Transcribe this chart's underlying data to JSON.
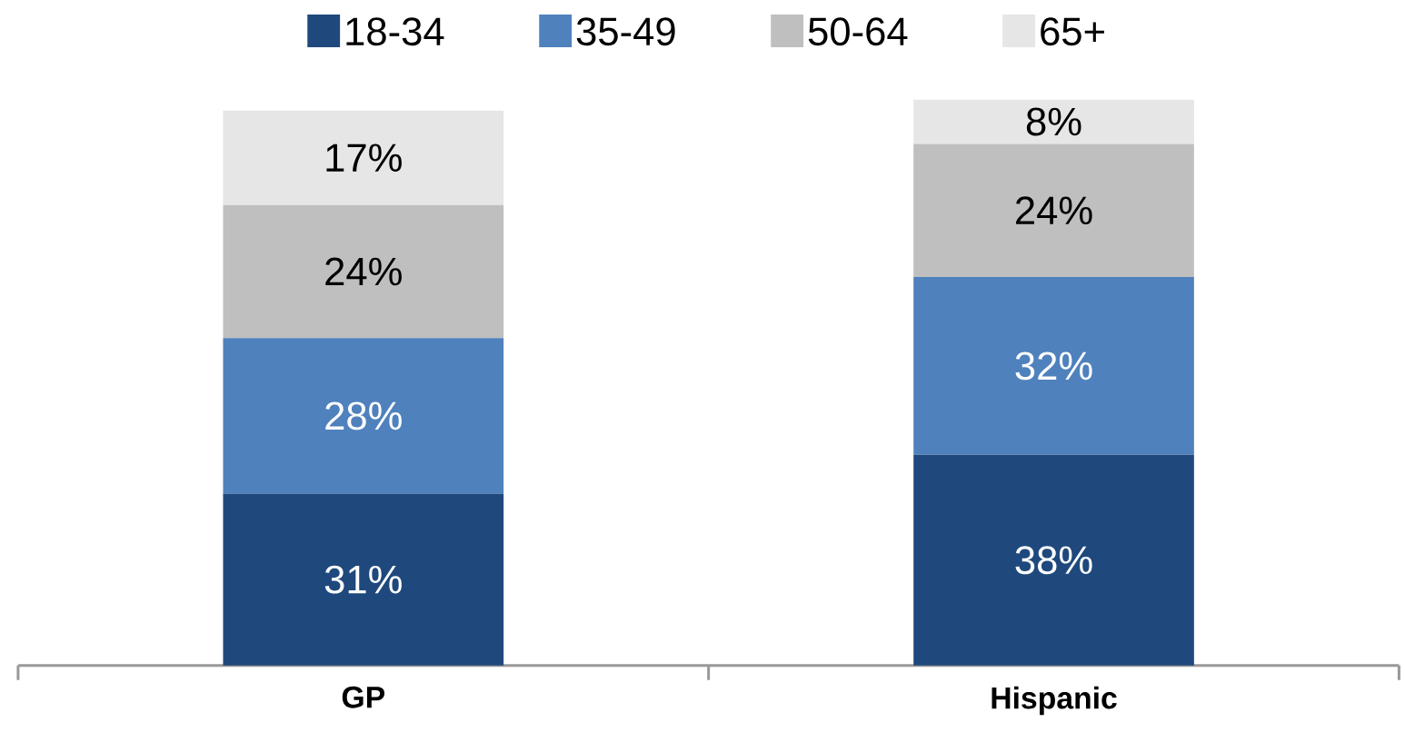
{
  "chart_data": {
    "type": "bar",
    "stacked": true,
    "categories": [
      "GP",
      "Hispanic"
    ],
    "legend": "top",
    "tick_labels": "x",
    "series": [
      {
        "name": "18-34",
        "color": "#1f497d",
        "values": [
          31,
          38
        ],
        "value_labels": [
          "31%",
          "38%"
        ]
      },
      {
        "name": "35-49",
        "color": "#4f81bd",
        "values": [
          28,
          32
        ],
        "value_labels": [
          "28%",
          "32%"
        ]
      },
      {
        "name": "50-64",
        "color": "#bfbfbf",
        "values": [
          24,
          24
        ],
        "value_labels": [
          "24%",
          "24%"
        ]
      },
      {
        "name": "65+",
        "color": "#e6e6e6",
        "values": [
          17,
          8
        ],
        "value_labels": [
          "17%",
          "8%"
        ]
      }
    ]
  }
}
